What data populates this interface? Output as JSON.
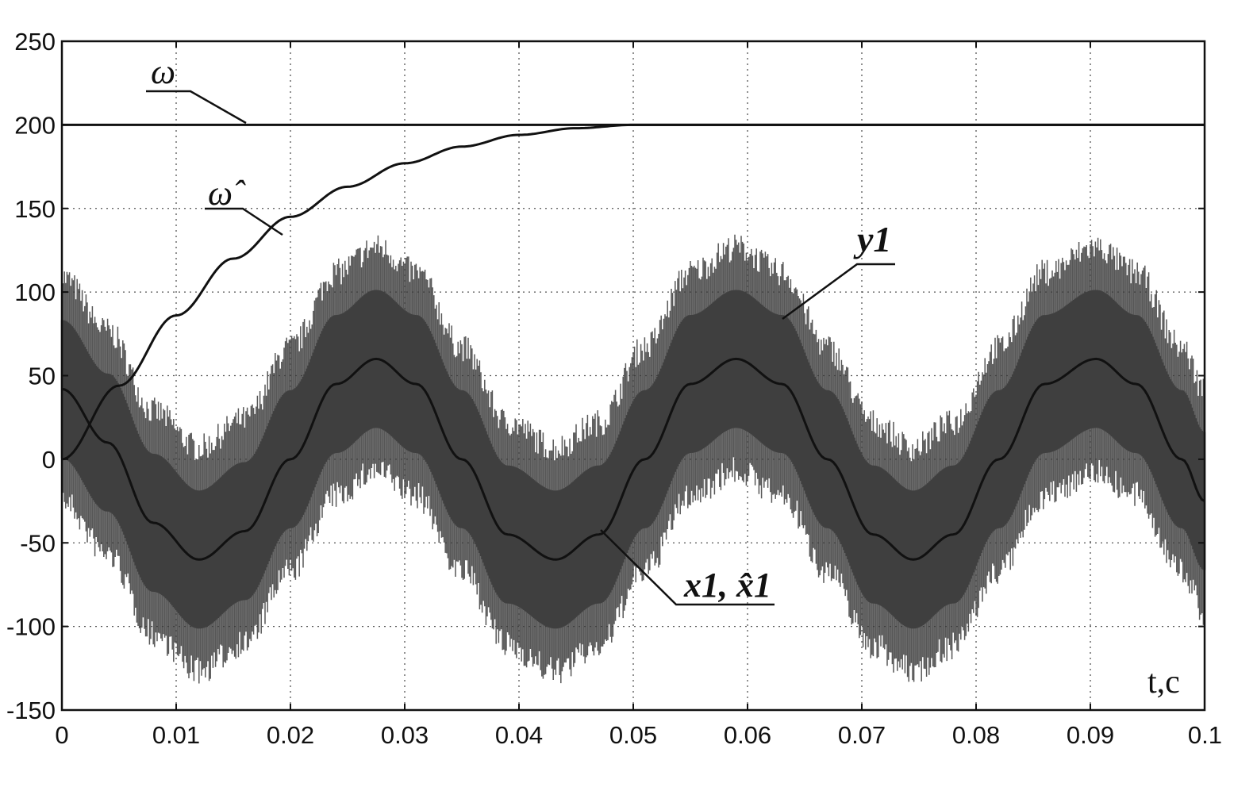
{
  "chart_data": {
    "type": "line",
    "title": "",
    "xlabel": "t,c",
    "ylabel": "",
    "xlim": [
      0,
      0.1
    ],
    "ylim": [
      -150,
      250
    ],
    "grid": true,
    "x_ticks": [
      0,
      0.01,
      0.02,
      0.03,
      0.04,
      0.05,
      0.06,
      0.07,
      0.08,
      0.09,
      0.1
    ],
    "x_tick_labels": [
      "0",
      "0.01",
      "0.02",
      "0.03",
      "0.04",
      "0.05",
      "0.06",
      "0.07",
      "0.08",
      "0.09",
      "0.1"
    ],
    "y_ticks": [
      -150,
      -100,
      -50,
      0,
      50,
      100,
      150,
      200,
      250
    ],
    "y_tick_labels": [
      "-150",
      "-100",
      "-50",
      "0",
      "50",
      "100",
      "150",
      "200",
      "250"
    ],
    "series": [
      {
        "name": "ω",
        "color": "#111111",
        "x": [
          0,
          0.1
        ],
        "y": [
          200,
          200
        ]
      },
      {
        "name": "ω̂",
        "color": "#111111",
        "x": [
          0,
          0.005,
          0.01,
          0.015,
          0.02,
          0.025,
          0.03,
          0.035,
          0.04,
          0.045,
          0.05,
          0.06,
          0.08,
          0.1
        ],
        "y": [
          0,
          44,
          86,
          120,
          145,
          163,
          177,
          187,
          194,
          198,
          200,
          200,
          200,
          200
        ]
      },
      {
        "name": "x1, x̂1",
        "color": "#111111",
        "x": [
          0,
          0.004,
          0.008,
          0.012,
          0.016,
          0.02,
          0.024,
          0.0275,
          0.031,
          0.035,
          0.039,
          0.0432,
          0.047,
          0.051,
          0.055,
          0.059,
          0.063,
          0.067,
          0.071,
          0.0745,
          0.078,
          0.082,
          0.086,
          0.0905,
          0.094,
          0.098,
          0.1
        ],
        "y": [
          42,
          10,
          -38,
          -60,
          -43,
          0,
          45,
          60,
          45,
          0,
          -45,
          -60,
          -45,
          0,
          45,
          60,
          45,
          0,
          -45,
          -60,
          -45,
          0,
          45,
          60,
          45,
          0,
          -25
        ]
      },
      {
        "name": "y1",
        "color": "#3a3a3a",
        "band_center": "x1, x̂1",
        "band_halfwidth": 75
      }
    ],
    "annotations": [
      {
        "label": "ω",
        "target": "ω"
      },
      {
        "label": "ω̂",
        "target": "ω̂"
      },
      {
        "label": "y1",
        "target": "y1"
      },
      {
        "label": "x1, x̂1",
        "target": "x1, x̂1"
      }
    ]
  }
}
